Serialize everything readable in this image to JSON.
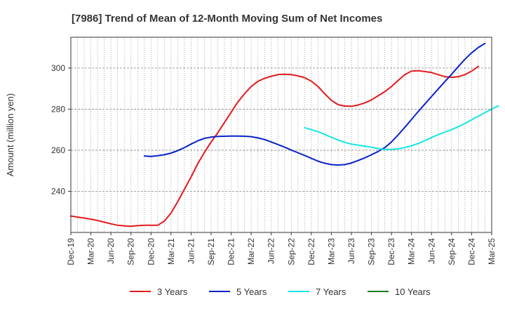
{
  "chart_data": {
    "type": "line",
    "title": "[7986]  Trend of Mean of 12-Month Moving Sum of Net Incomes",
    "xlabel": "",
    "ylabel": "Amount (million yen)",
    "ylim": [
      220,
      315
    ],
    "yticks": [
      240,
      260,
      280,
      300
    ],
    "xticks": [
      "Dec-19",
      "Mar-20",
      "Jun-20",
      "Sep-20",
      "Dec-20",
      "Mar-21",
      "Jun-21",
      "Sep-21",
      "Dec-21",
      "Mar-22",
      "Jun-22",
      "Sep-22",
      "Dec-22",
      "Mar-23",
      "Jun-23",
      "Sep-23",
      "Dec-23",
      "Mar-24",
      "Jun-24",
      "Sep-24",
      "Dec-24",
      "Mar-25"
    ],
    "grid": true,
    "legend_position": "bottom",
    "x_start": "2019-12",
    "series": [
      {
        "name": "3 Years",
        "color": "#e31a1c",
        "start": "2019-12",
        "values": [
          228,
          227.5,
          227,
          226.5,
          225.8,
          225,
          224.2,
          223.5,
          223.2,
          223,
          223.3,
          223.5,
          223.5,
          223.5,
          225.5,
          229.5,
          235,
          241,
          247,
          253.5,
          259,
          264,
          268.5,
          273.5,
          278.5,
          283.5,
          287.5,
          291,
          293.5,
          295,
          296,
          296.8,
          297,
          296.8,
          296.2,
          295.3,
          293.6,
          291,
          287.5,
          284.3,
          282.2,
          281.5,
          281.4,
          282,
          283,
          284.5,
          286.5,
          288.5,
          291,
          294,
          296.8,
          298.5,
          298.7,
          298.3,
          297.8,
          296.8,
          295.8,
          295.5,
          295.8,
          296.8,
          298.5,
          300.8
        ]
      },
      {
        "name": "5 Years",
        "color": "#0a22c8",
        "start": "2020-11",
        "values": [
          257.2,
          257,
          257.3,
          257.8,
          258.6,
          259.8,
          261.3,
          263,
          264.6,
          265.8,
          266.4,
          266.7,
          266.8,
          266.9,
          266.9,
          266.8,
          266.6,
          266,
          265.2,
          264,
          262.8,
          261.5,
          260.1,
          258.8,
          257.5,
          256.1,
          254.7,
          253.7,
          253,
          252.8,
          253,
          253.8,
          255,
          256.3,
          257.8,
          259.4,
          261.3,
          264,
          267.5,
          271.2,
          275,
          278.8,
          282.5,
          286.2,
          289.8,
          293.4,
          297,
          300.7,
          304.3,
          307.4,
          310,
          312
        ]
      },
      {
        "name": "7 Years",
        "color": "#17e5e5",
        "start": "2022-11",
        "values": [
          271,
          270,
          269,
          267.7,
          266.3,
          265,
          263.8,
          263,
          262.5,
          262,
          261.5,
          260.8,
          260.4,
          260.4,
          260.7,
          261.3,
          262.2,
          263.3,
          264.7,
          266.2,
          267.6,
          268.8,
          270,
          271.5,
          273,
          274.8,
          276.6,
          278.3,
          280,
          281.6
        ]
      },
      {
        "name": "10 Years",
        "color": "#1a7d1a",
        "start": "2022-11",
        "values": []
      }
    ]
  }
}
